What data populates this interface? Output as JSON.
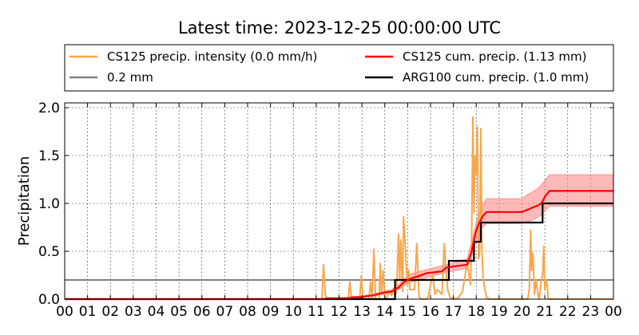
{
  "chart_data": {
    "type": "line",
    "title": "Latest time: 2023-12-25 00:00:00 UTC",
    "ylabel": "Precipitation",
    "xlabel": "",
    "xlim": [
      0,
      24
    ],
    "ylim": [
      0,
      2.05
    ],
    "grid": true,
    "legend_placement": "top",
    "x_ticks": [
      "00",
      "01",
      "02",
      "03",
      "04",
      "05",
      "06",
      "07",
      "08",
      "09",
      "10",
      "11",
      "12",
      "13",
      "14",
      "15",
      "16",
      "17",
      "18",
      "19",
      "20",
      "21",
      "22",
      "23",
      "00"
    ],
    "y_ticks": [
      "0.0",
      "0.5",
      "1.0",
      "1.5",
      "2.0"
    ],
    "y_tick_values": [
      0,
      0.5,
      1.0,
      1.5,
      2.0
    ],
    "colors": {
      "intensity": "#f9a64b",
      "threshold": "#808080",
      "cs125_cum": "#ff0000",
      "cs125_band": "#ff8080",
      "arg100_cum": "#000000"
    },
    "legend": [
      {
        "key": "intensity",
        "label": "CS125 precip. intensity (0.0 mm/h)"
      },
      {
        "key": "cs125_cum",
        "label": "CS125 cum. precip. (1.13 mm)"
      },
      {
        "key": "threshold",
        "label": "0.2 mm"
      },
      {
        "key": "arg100_cum",
        "label": "ARG100 cum. precip. (1.0 mm)"
      }
    ],
    "threshold": {
      "value": 0.2
    },
    "intensity": {
      "x": [
        0,
        11.25,
        11.32,
        11.4,
        11.48,
        12.0,
        12.4,
        12.47,
        12.55,
        12.9,
        12.97,
        13.05,
        13.3,
        13.38,
        13.45,
        13.52,
        13.6,
        13.75,
        13.8,
        13.86,
        13.92,
        14.0,
        14.1,
        14.2,
        14.3,
        14.4,
        14.45,
        14.52,
        14.6,
        14.65,
        14.7,
        14.78,
        14.82,
        14.9,
        14.95,
        15.0,
        15.05,
        15.1,
        15.3,
        15.4,
        15.45,
        15.5,
        15.6,
        15.8,
        15.9,
        16.0,
        16.1,
        16.2,
        16.3,
        16.5,
        16.6,
        16.67,
        16.75,
        16.85,
        17.0,
        17.2,
        17.4,
        17.6,
        17.75,
        17.8,
        17.85,
        17.9,
        17.95,
        18.0,
        18.05,
        18.1,
        18.15,
        18.2,
        18.25,
        18.3,
        18.38,
        18.45,
        18.55,
        18.7,
        19.0,
        19.5,
        20.0,
        20.25,
        20.32,
        20.38,
        20.42,
        20.48,
        20.55,
        20.62,
        20.7,
        20.75,
        20.8,
        20.85,
        20.9,
        20.95,
        21.0,
        21.05,
        21.1,
        21.15,
        21.25,
        24
      ],
      "values": [
        0,
        0,
        0.36,
        0.05,
        0,
        0,
        0,
        0.18,
        0,
        0,
        0.24,
        0,
        0,
        0.18,
        0,
        0.52,
        0,
        0,
        0.37,
        0.05,
        0.3,
        0,
        0.02,
        0.08,
        0.04,
        0.1,
        0.02,
        0.1,
        0.68,
        0.2,
        0.62,
        0.08,
        0.86,
        0.55,
        0.3,
        0.15,
        0.3,
        0.1,
        0.1,
        0.58,
        0.28,
        0.02,
        0,
        0,
        0.02,
        0.15,
        0.25,
        0.05,
        0.1,
        0.05,
        0.58,
        0.3,
        0.1,
        0.02,
        0,
        0.01,
        0.08,
        0.38,
        0.15,
        0.65,
        1.9,
        0.9,
        1.5,
        1.3,
        1.8,
        0.42,
        0.48,
        1.78,
        0.5,
        0.22,
        0.1,
        0.02,
        0,
        0,
        0,
        0,
        0,
        0,
        0.1,
        0.72,
        0.3,
        0.48,
        0.05,
        0.2,
        0.05,
        0,
        0.1,
        0.2,
        0.25,
        0.55,
        0.1,
        0.2,
        0.15,
        0,
        0,
        0
      ]
    },
    "cs125_cum": {
      "x": [
        0,
        11.3,
        11.5,
        12.4,
        12.6,
        13.0,
        13.2,
        13.5,
        13.8,
        14.0,
        14.3,
        14.6,
        14.8,
        15.0,
        15.2,
        15.5,
        15.8,
        16.5,
        16.7,
        17.0,
        17.6,
        17.8,
        17.9,
        18.0,
        18.1,
        18.2,
        18.3,
        18.45,
        19.0,
        20.0,
        20.3,
        20.6,
        20.8,
        20.9,
        21.0,
        21.2,
        24
      ],
      "values": [
        0,
        0,
        0.01,
        0.01,
        0.02,
        0.02,
        0.03,
        0.04,
        0.06,
        0.07,
        0.08,
        0.12,
        0.17,
        0.2,
        0.22,
        0.24,
        0.27,
        0.29,
        0.33,
        0.34,
        0.36,
        0.5,
        0.62,
        0.72,
        0.78,
        0.83,
        0.87,
        0.91,
        0.91,
        0.91,
        0.94,
        0.97,
        0.99,
        1.02,
        1.07,
        1.13,
        1.13
      ]
    },
    "cs125_upper": {
      "x": [
        0,
        11.3,
        12.5,
        13.5,
        14.3,
        14.6,
        15.0,
        15.5,
        16.7,
        17.6,
        17.8,
        18.0,
        18.2,
        18.45,
        20.0,
        20.3,
        20.6,
        20.8,
        21.0,
        21.2,
        24
      ],
      "values": [
        0,
        0,
        0.02,
        0.05,
        0.1,
        0.15,
        0.25,
        0.29,
        0.36,
        0.42,
        0.6,
        0.8,
        0.95,
        1.05,
        1.05,
        1.1,
        1.14,
        1.18,
        1.24,
        1.3,
        1.3
      ]
    },
    "cs125_lower": {
      "x": [
        0,
        11.3,
        12.5,
        13.5,
        14.3,
        14.6,
        15.0,
        15.5,
        16.7,
        17.6,
        17.8,
        18.0,
        18.2,
        18.45,
        20.0,
        20.3,
        20.6,
        20.8,
        21.0,
        21.2,
        24
      ],
      "values": [
        0,
        0,
        0.01,
        0.03,
        0.06,
        0.1,
        0.17,
        0.2,
        0.28,
        0.32,
        0.45,
        0.62,
        0.73,
        0.79,
        0.79,
        0.81,
        0.84,
        0.87,
        0.92,
        0.97,
        0.97
      ]
    },
    "arg100_cum": {
      "x": [
        0,
        14.45,
        14.45,
        16.8,
        16.8,
        17.9,
        17.9,
        18.2,
        18.2,
        20.9,
        20.9,
        24
      ],
      "values": [
        0,
        0,
        0.2,
        0.2,
        0.4,
        0.4,
        0.6,
        0.6,
        0.8,
        0.8,
        1.0,
        1.0
      ]
    }
  }
}
